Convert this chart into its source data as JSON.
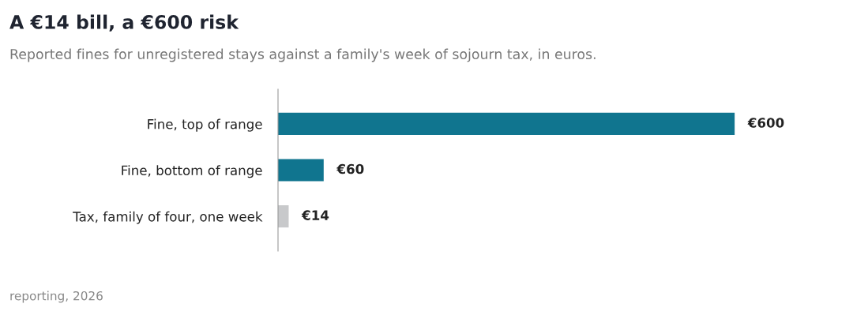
{
  "chart_data": {
    "type": "bar",
    "orientation": "horizontal",
    "title": "A €14 bill, a €600 risk",
    "subtitle": "Reported fines for unregistered stays against a family's week of sojourn tax, in euros.",
    "categories": [
      "Fine, top of range",
      "Fine, bottom of range",
      "Tax, family of four, one week"
    ],
    "values": [
      600,
      60,
      14
    ],
    "colors": [
      "#10758f",
      "#10758f",
      "#c8c9cb"
    ],
    "value_labels": [
      "€600",
      "€60",
      "€14"
    ],
    "annotations": [
      "reporting, 2026"
    ],
    "grid": false,
    "legend": false
  }
}
